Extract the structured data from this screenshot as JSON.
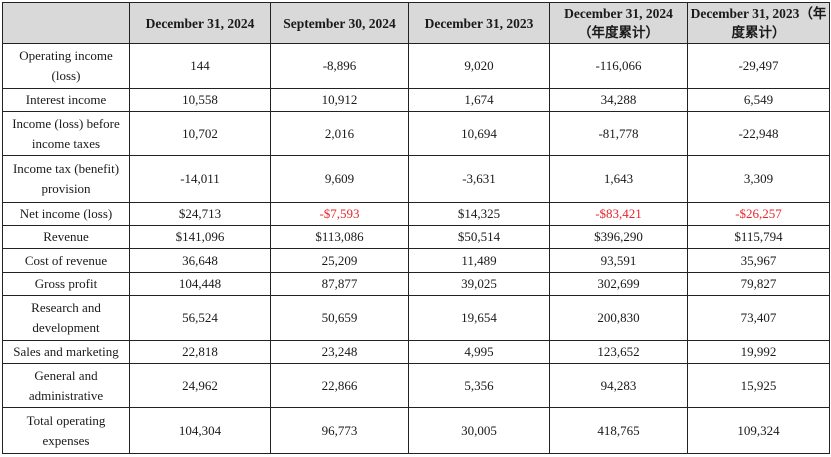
{
  "headers": [
    "",
    "December 31, 2024",
    "September 30, 2024",
    "December 31, 2023",
    "December 31, 2024（年度累计）",
    "December 31, 2023（年度累计）"
  ],
  "rows": [
    {
      "label": "Operating income (loss)",
      "values": [
        "144",
        "-8,896",
        "9,020",
        "-116,066",
        "-29,497"
      ]
    },
    {
      "label": "Interest income",
      "values": [
        "10,558",
        "10,912",
        "1,674",
        "34,288",
        "6,549"
      ]
    },
    {
      "label": "Income (loss) before income taxes",
      "values": [
        "10,702",
        "2,016",
        "10,694",
        "-81,778",
        "-22,948"
      ]
    },
    {
      "label": "Income tax (benefit) provision",
      "values": [
        "-14,011",
        "9,609",
        "-3,631",
        "1,643",
        "3,309"
      ]
    },
    {
      "label": "Net income (loss)",
      "values": [
        "$24,713",
        "-$7,593",
        "$14,325",
        "-$83,421",
        "-$26,257"
      ]
    },
    {
      "label": "Revenue",
      "values": [
        "$141,096",
        "$113,086",
        "$50,514",
        "$396,290",
        "$115,794"
      ]
    },
    {
      "label": "Cost of revenue",
      "values": [
        "36,648",
        "25,209",
        "11,489",
        "93,591",
        "35,967"
      ]
    },
    {
      "label": "Gross profit",
      "values": [
        "104,448",
        "87,877",
        "39,025",
        "302,699",
        "79,827"
      ]
    },
    {
      "label": "Research and development",
      "values": [
        "56,524",
        "50,659",
        "19,654",
        "200,830",
        "73,407"
      ]
    },
    {
      "label": "Sales and marketing",
      "values": [
        "22,818",
        "23,248",
        "4,995",
        "123,652",
        "19,992"
      ]
    },
    {
      "label": "General and administrative",
      "values": [
        "24,962",
        "22,866",
        "5,356",
        "94,283",
        "15,925"
      ]
    },
    {
      "label": "Total operating expenses",
      "values": [
        "104,304",
        "96,773",
        "30,005",
        "418,765",
        "109,324"
      ]
    }
  ],
  "colors": {
    "header_bg": "#d9d9d9",
    "negative_highlight": "#e8262c",
    "border": "#222222"
  }
}
